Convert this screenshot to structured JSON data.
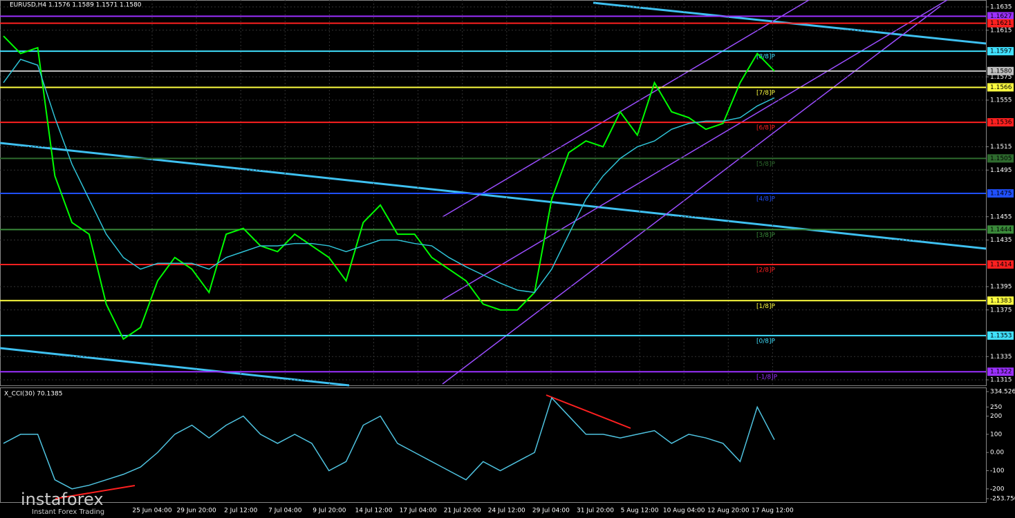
{
  "chart_data": [
    {
      "type": "line",
      "title": "EURUSD,H4  1.1576 1.1589 1.1571 1.1580",
      "series": [
        {
          "name": "EURUSD",
          "color": "#00ff00",
          "values": [
            1.161,
            1.1595,
            1.16,
            1.149,
            1.145,
            1.144,
            1.138,
            1.135,
            1.136,
            1.14,
            1.142,
            1.141,
            1.139,
            1.144,
            1.1445,
            1.143,
            1.1425,
            1.144,
            1.143,
            1.142,
            1.14,
            1.145,
            1.1465,
            1.144,
            1.144,
            1.142,
            1.141,
            1.14,
            1.138,
            1.1375,
            1.1375,
            1.139,
            1.147,
            1.151,
            1.152,
            1.1515,
            1.1545,
            1.1525,
            1.157,
            1.1545,
            1.154,
            1.153,
            1.1535,
            1.157,
            1.1595,
            1.158
          ]
        },
        {
          "name": "MA",
          "color": "#2fc4d8",
          "values": [
            1.157,
            1.159,
            1.1585,
            1.154,
            1.15,
            1.147,
            1.144,
            1.142,
            1.141,
            1.1415,
            1.1415,
            1.1415,
            1.141,
            1.142,
            1.1425,
            1.143,
            1.143,
            1.1432,
            1.1432,
            1.143,
            1.1425,
            1.143,
            1.1435,
            1.1435,
            1.1432,
            1.143,
            1.142,
            1.1412,
            1.1405,
            1.1398,
            1.1392,
            1.139,
            1.141,
            1.144,
            1.147,
            1.149,
            1.1505,
            1.1515,
            1.152,
            1.153,
            1.1535,
            1.1537,
            1.1537,
            1.154,
            1.155,
            1.1557
          ]
        }
      ],
      "ylim": [
        1.1635,
        1.1315
      ],
      "yticks": [
        1.1635,
        1.1615,
        1.1575,
        1.1555,
        1.1515,
        1.1495,
        1.1455,
        1.1435,
        1.1395,
        1.1375,
        1.1335,
        1.1315
      ],
      "x_labels": [
        "25 Jun 04:00",
        "29 Jun 20:00",
        "2 Jul 12:00",
        "7 Jul 04:00",
        "9 Jul 20:00",
        "14 Jul 12:00",
        "17 Jul 04:00",
        "21 Jul 20:00",
        "24 Jul 12:00",
        "29 Jul 04:00",
        "31 Jul 20:00",
        "5 Aug 12:00",
        "10 Aug 04:00",
        "12 Aug 20:00",
        "17 Aug 12:00"
      ],
      "levels": [
        {
          "value": 1.1627,
          "color": "#9b30ff"
        },
        {
          "value": 1.1621,
          "color": "#ff2020"
        },
        {
          "value": 1.1597,
          "color": "#40e0ff",
          "murray": "[8/8]P"
        },
        {
          "value": 1.158,
          "label": "1.1580",
          "color": "#c0c0c0"
        },
        {
          "value": 1.1566,
          "color": "#ffff40",
          "murray": "[7/8]P"
        },
        {
          "value": 1.1536,
          "color": "#ff2020",
          "murray": "[6/8]P"
        },
        {
          "value": 1.1505,
          "color": "#2e6b2e",
          "murray": "[5/8]P"
        },
        {
          "value": 1.1475,
          "color": "#2050ff",
          "murray": "[4/8]P"
        },
        {
          "value": 1.1444,
          "color": "#3a8a3a",
          "murray": "[3/8]P"
        },
        {
          "value": 1.1414,
          "color": "#ff2020",
          "murray": "[2/8]P"
        },
        {
          "value": 1.1383,
          "color": "#ffff40",
          "murray": "[1/8]P"
        },
        {
          "value": 1.1353,
          "color": "#40e0ff",
          "murray": "[0/8]P"
        },
        {
          "value": 1.1322,
          "color": "#9b30ff",
          "murray": "[-1/8]P"
        }
      ],
      "grid": true
    },
    {
      "type": "line",
      "title": "X_CCI(30) 70.1385",
      "series": [
        {
          "name": "CCI",
          "color": "#4fc3e0",
          "values": [
            50,
            100,
            100,
            -150,
            -200,
            -180,
            -150,
            -120,
            -80,
            0,
            100,
            150,
            80,
            150,
            200,
            100,
            50,
            100,
            50,
            -100,
            -50,
            150,
            200,
            50,
            0,
            -50,
            -100,
            -150,
            -50,
            -100,
            -50,
            0,
            300,
            200,
            100,
            100,
            80,
            100,
            120,
            50,
            100,
            80,
            50,
            -50,
            250,
            70
          ]
        }
      ],
      "ylim": [
        334.5265,
        -253.75
      ],
      "yticks": [
        334.5265,
        250,
        200,
        100,
        {
          "value": 0,
          "label": "0.00"
        },
        -100,
        -200,
        {
          "value": -253.75,
          "label": "-253.750"
        }
      ]
    }
  ],
  "branding": {
    "name": "instaforex",
    "tagline": "Instant Forex Trading"
  }
}
